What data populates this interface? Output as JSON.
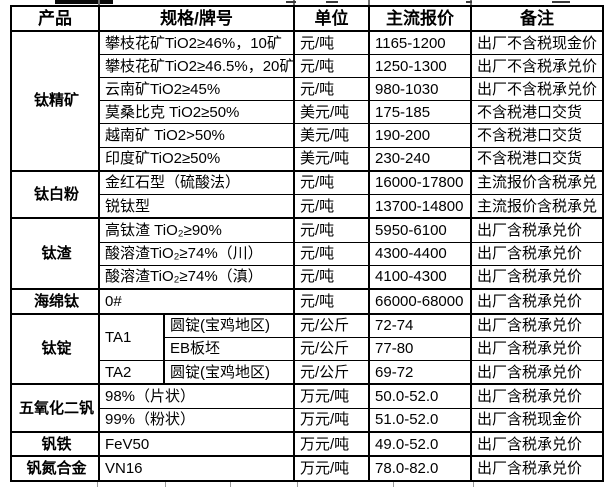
{
  "header": {
    "columns": [
      "产品",
      "规格/牌号",
      "单位",
      "主流报价",
      "备注"
    ]
  },
  "groups": [
    {
      "product": "钛精矿",
      "rows": [
        {
          "spec": "攀枝花矿TiO2≥46%，10矿",
          "unit": "元/吨",
          "price": "1165-1200",
          "note": "出厂不含税现金价"
        },
        {
          "spec": "攀枝花矿TiO2≥46.5%，20矿",
          "unit": "元/吨",
          "price": "1250-1300",
          "note": "出厂不含税承兑价"
        },
        {
          "spec": "云南矿TiO2≥45%",
          "unit": "元/吨",
          "price": "980-1030",
          "note": "出厂不含税承兑价"
        },
        {
          "spec": "莫桑比克 TiO2≥50%",
          "unit": "美元/吨",
          "price": "175-185",
          "note": "不含税港口交货"
        },
        {
          "spec": "越南矿 TiO2>50%",
          "unit": "美元/吨",
          "price": "190-200",
          "note": "不含税港口交货"
        },
        {
          "spec": "印度矿TiO2≥50%",
          "unit": "美元/吨",
          "price": "230-240",
          "note": "不含税港口交货"
        }
      ]
    },
    {
      "product": "钛白粉",
      "rows": [
        {
          "spec": "金红石型（硫酸法）",
          "unit": "元/吨",
          "price": "16000-17800",
          "note": "主流报价含税承兑"
        },
        {
          "spec": "锐钛型",
          "unit": "元/吨",
          "price": "13700-14800",
          "note": "主流报价含税承兑"
        }
      ]
    },
    {
      "product": "钛渣",
      "rows": [
        {
          "spec": "高钛渣 TiO₂≥90%",
          "unit": "元/吨",
          "price": "5950-6100",
          "note": "出厂含税承兑价"
        },
        {
          "spec": "酸溶渣TiO₂≥74%（川）",
          "unit": "元/吨",
          "price": "4300-4400",
          "note": "出厂含税承兑价"
        },
        {
          "spec": "酸溶渣TiO₂≥74%（滇）",
          "unit": "元/吨",
          "price": "4100-4300",
          "note": "出厂含税承兑价"
        }
      ]
    },
    {
      "product": "海绵钛",
      "rows": [
        {
          "spec": "0#",
          "unit": "元/吨",
          "price": "66000-68000",
          "note": "出厂含税承兑价"
        }
      ]
    },
    {
      "product": "钛锭",
      "rows": [
        {
          "spec": "TA1",
          "spec_rowspan": 2,
          "spec2": "圆锭(宝鸡地区)",
          "unit": "元/公斤",
          "price": "72-74",
          "note": "出厂含税承兑价"
        },
        {
          "spec2": "EB板坯",
          "unit": "元/公斤",
          "price": "77-80",
          "note": "出厂含税承兑价"
        },
        {
          "spec": "TA2",
          "spec2": "圆锭(宝鸡地区)",
          "unit": "元/公斤",
          "price": "69-72",
          "note": "出厂含税承兑价"
        }
      ]
    },
    {
      "product": "五氧化二钒",
      "rows": [
        {
          "spec": "98%（片状）",
          "unit": "万元/吨",
          "price": "50.0-52.0",
          "note": "出厂含税承兑价"
        },
        {
          "spec": "99%（粉状）",
          "unit": "万元/吨",
          "price": "51.0-52.0",
          "note": "出厂含税现金价"
        }
      ]
    },
    {
      "product": "钒铁",
      "rows": [
        {
          "spec": "FeV50",
          "unit": "万元/吨",
          "price": "49.0-52.0",
          "note": "出厂含税承兑价"
        }
      ]
    },
    {
      "product": "钒氮合金",
      "rows": [
        {
          "spec": "VN16",
          "unit": "万元/吨",
          "price": "78.0-82.0",
          "note": "出厂含税承兑价"
        }
      ]
    }
  ]
}
